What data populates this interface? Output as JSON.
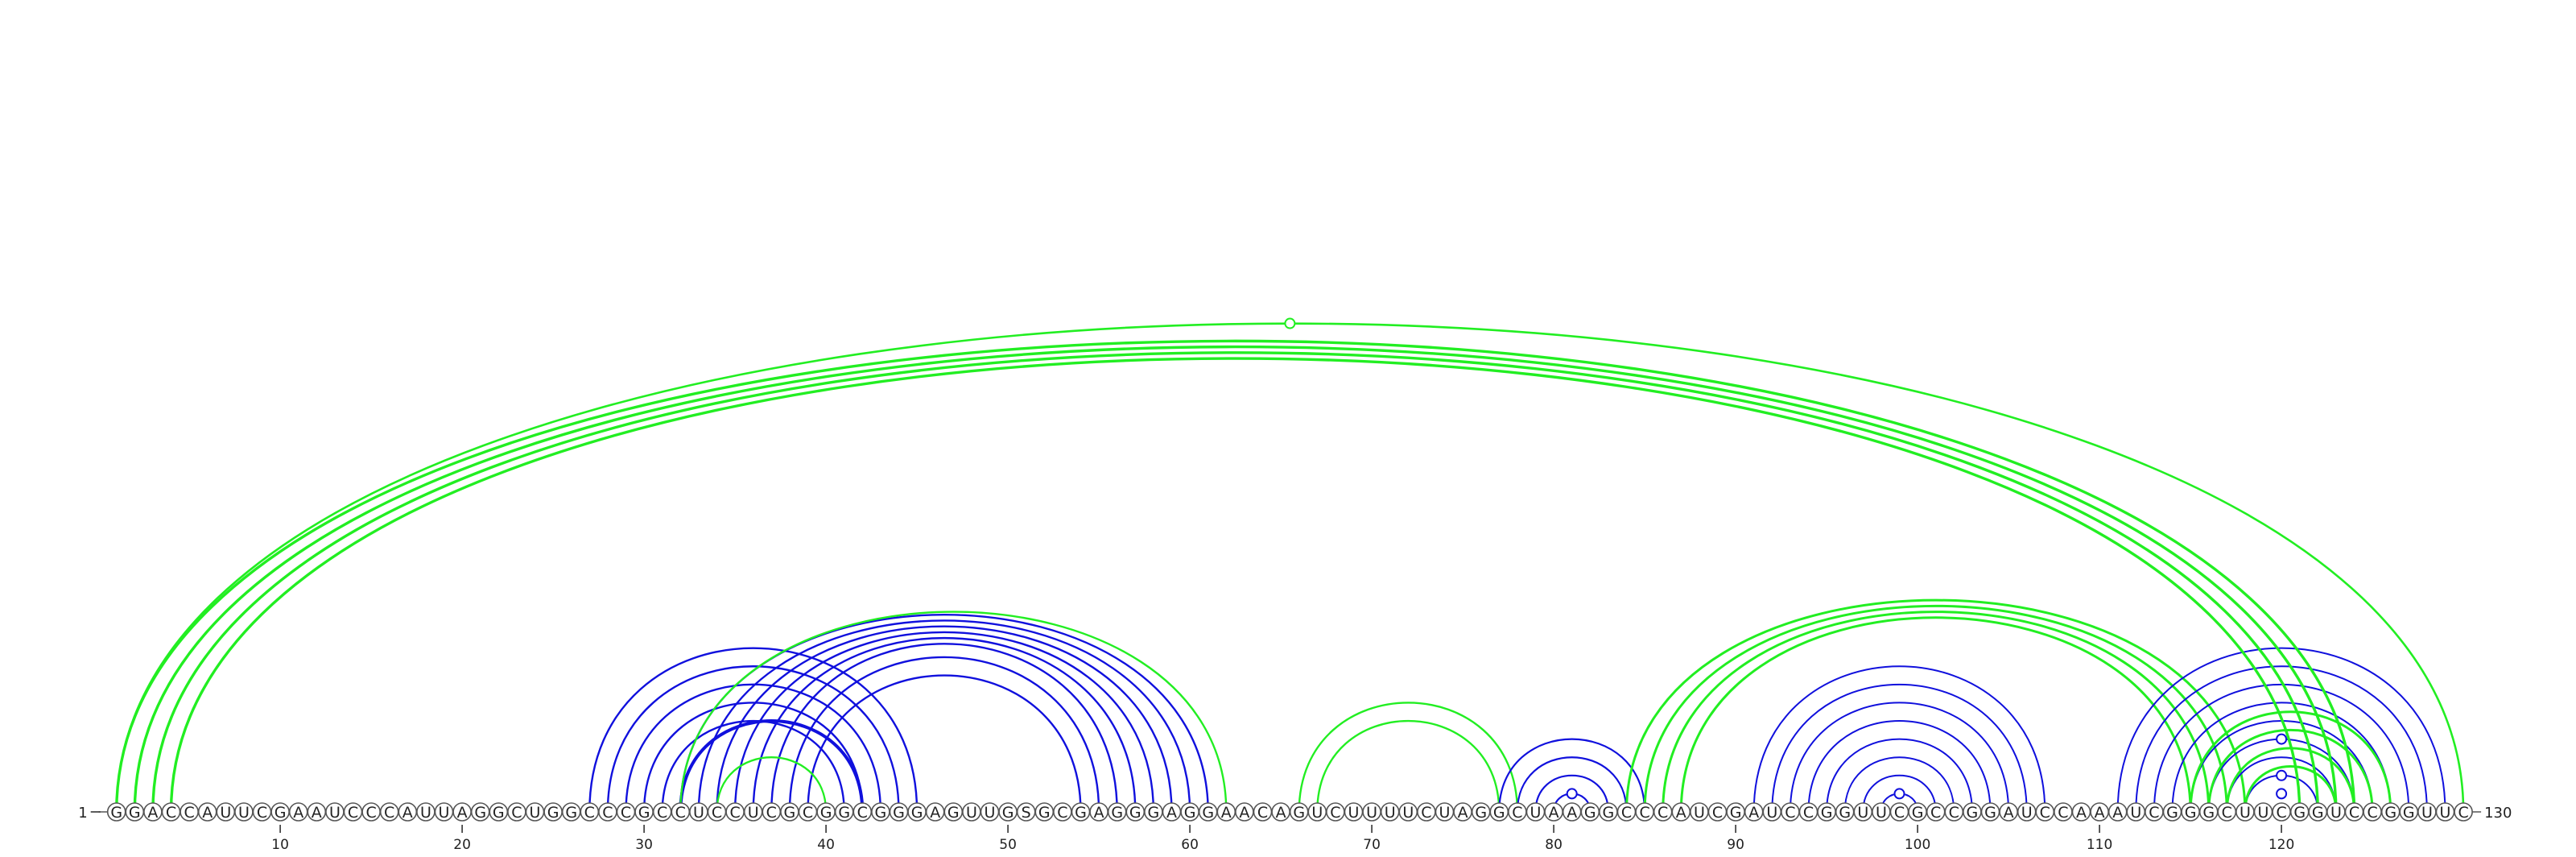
{
  "sequence": "GGACCAUUCGAAUCCCAUUAGGCUGGCCCGCCUCCUCGCGGCGGGAGUUGSGCGAGGGAGGAACAGUCUUUUCUAGGCUAAGGCCCAUCGAUCCGGUUCGCCGGAUCCAAAUCGGGCUUCGGUCCGGUUC",
  "start_label": "1",
  "end_label": "130",
  "ticks": [
    "10",
    "20",
    "30",
    "40",
    "50",
    "60",
    "70",
    "80",
    "90",
    "100",
    "110",
    "120"
  ],
  "colors": {
    "blue": "#1010dd",
    "green": "#22ee22"
  },
  "helices": [
    {
      "color": "blue",
      "i": 27,
      "j": 45,
      "n": 5,
      "w": 2.4
    },
    {
      "color": "blue",
      "i": 32,
      "j": 42,
      "n": 1,
      "w": 4.0
    },
    {
      "color": "blue",
      "i": 32,
      "j": 61,
      "n": 8,
      "w": 2.4
    },
    {
      "color": "green",
      "i": 32,
      "j": 62,
      "n": 1,
      "w": 2.4
    },
    {
      "color": "green",
      "i": 34,
      "j": 40,
      "n": 1,
      "w": 2.4
    },
    {
      "color": "green",
      "i": 66,
      "j": 78,
      "n": 2,
      "w": 2.4
    },
    {
      "color": "blue",
      "i": 77,
      "j": 85,
      "n": 4,
      "w": 2.2
    },
    {
      "color": "green",
      "i": 84,
      "j": 118,
      "n": 4,
      "w": 3.0
    },
    {
      "color": "blue",
      "i": 91,
      "j": 107,
      "n": 9,
      "w": 2.0
    },
    {
      "color": "blue",
      "i": 111,
      "j": 129,
      "n": 8,
      "w": 2.0
    },
    {
      "color": "green",
      "i": 115,
      "j": 126,
      "n": 4,
      "w": 3.0
    },
    {
      "color": "green",
      "i": 1,
      "j": 124,
      "n": 4,
      "w": 3.4
    },
    {
      "color": "green",
      "i": 1,
      "j": 130,
      "n": 1,
      "w": 2.6
    }
  ],
  "markers": [
    {
      "color": "green",
      "i": 1,
      "j": 130
    },
    {
      "color": "blue",
      "i": 80,
      "j": 82
    },
    {
      "color": "blue",
      "i": 98,
      "j": 100
    },
    {
      "color": "blue",
      "i": 119,
      "j": 121
    },
    {
      "color": "blue",
      "i": 118,
      "j": 122
    },
    {
      "color": "blue",
      "i": 116,
      "j": 124
    }
  ]
}
